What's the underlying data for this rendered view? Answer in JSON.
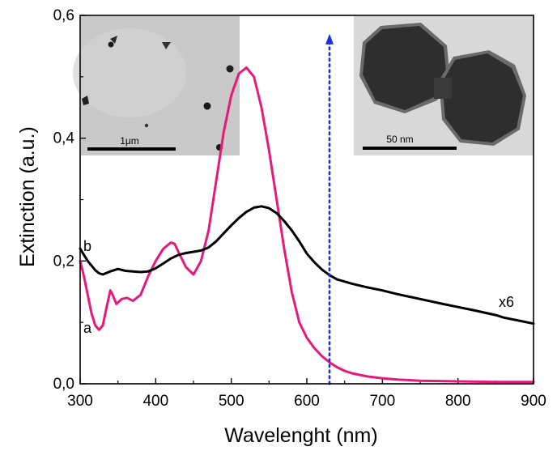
{
  "chart_data": {
    "type": "line",
    "xlabel": "Wavelenght (nm)",
    "ylabel": "Extinction (a.u.)",
    "xlim": [
      300,
      900
    ],
    "ylim": [
      0.0,
      0.6
    ],
    "x_ticks": [
      300,
      400,
      500,
      600,
      700,
      800,
      900
    ],
    "x_tick_labels": [
      "300",
      "400",
      "500",
      "600",
      "700",
      "800",
      "900"
    ],
    "y_ticks": [
      0.0,
      0.2,
      0.4,
      0.6
    ],
    "y_tick_labels": [
      "0,0",
      "0,2",
      "0,4",
      "0,6"
    ],
    "grid": false,
    "series": [
      {
        "name": "a",
        "color": "#e8197a",
        "x": [
          300,
          305,
          310,
          315,
          320,
          325,
          330,
          335,
          340,
          343,
          348,
          355,
          362,
          370,
          380,
          390,
          400,
          410,
          420,
          425,
          430,
          440,
          450,
          460,
          470,
          480,
          490,
          500,
          510,
          520,
          530,
          540,
          550,
          560,
          570,
          580,
          590,
          600,
          610,
          620,
          630,
          640,
          650,
          660,
          680,
          700,
          720,
          750,
          800,
          850,
          900
        ],
        "values": [
          0.2,
          0.175,
          0.145,
          0.115,
          0.095,
          0.088,
          0.095,
          0.125,
          0.152,
          0.145,
          0.13,
          0.138,
          0.14,
          0.135,
          0.145,
          0.175,
          0.2,
          0.22,
          0.23,
          0.228,
          0.215,
          0.19,
          0.178,
          0.2,
          0.25,
          0.33,
          0.41,
          0.47,
          0.505,
          0.515,
          0.5,
          0.45,
          0.38,
          0.3,
          0.22,
          0.15,
          0.1,
          0.075,
          0.058,
          0.045,
          0.035,
          0.027,
          0.021,
          0.017,
          0.012,
          0.009,
          0.007,
          0.005,
          0.004,
          0.003,
          0.003
        ],
        "label": "a"
      },
      {
        "name": "b",
        "color": "#000000",
        "x": [
          300,
          310,
          320,
          325,
          330,
          340,
          345,
          350,
          360,
          370,
          380,
          390,
          400,
          410,
          420,
          430,
          440,
          450,
          460,
          470,
          480,
          490,
          500,
          510,
          520,
          530,
          540,
          550,
          560,
          570,
          580,
          590,
          600,
          610,
          620,
          630,
          640,
          660,
          680,
          700,
          720,
          750,
          780,
          800,
          820,
          850,
          860,
          880,
          900
        ],
        "values": [
          0.22,
          0.2,
          0.185,
          0.18,
          0.178,
          0.183,
          0.185,
          0.187,
          0.184,
          0.183,
          0.182,
          0.183,
          0.188,
          0.196,
          0.204,
          0.21,
          0.213,
          0.215,
          0.217,
          0.222,
          0.232,
          0.245,
          0.258,
          0.27,
          0.28,
          0.287,
          0.289,
          0.286,
          0.278,
          0.265,
          0.25,
          0.232,
          0.212,
          0.198,
          0.186,
          0.177,
          0.17,
          0.163,
          0.157,
          0.152,
          0.146,
          0.138,
          0.13,
          0.125,
          0.12,
          0.112,
          0.108,
          0.103,
          0.098
        ],
        "label": "b"
      }
    ],
    "vertical_marker": {
      "x": 630,
      "y_top": 0.57,
      "color": "#1a2fe0",
      "style": "dotted",
      "arrow": "up"
    },
    "annotations": {
      "series_b_scale": "x6"
    },
    "insets": [
      {
        "name": "left-tem-image",
        "scale_bar_label": "1μm"
      },
      {
        "name": "right-tem-image",
        "scale_bar_label": "50 nm"
      }
    ]
  }
}
